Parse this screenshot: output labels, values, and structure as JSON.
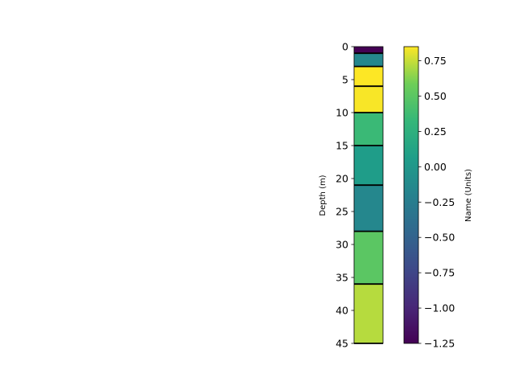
{
  "chart_data": {
    "type": "bar",
    "orientation": "vertical-column",
    "ylabel": "Depth (m)",
    "ylim": [
      45,
      0
    ],
    "yticks": [
      "0",
      "5",
      "10",
      "15",
      "20",
      "25",
      "30",
      "35",
      "40",
      "45"
    ],
    "layers": [
      {
        "top": 0,
        "bottom": 1,
        "value": -1.25
      },
      {
        "top": 1,
        "bottom": 3,
        "value": -0.15
      },
      {
        "top": 3,
        "bottom": 6,
        "value": 0.85
      },
      {
        "top": 6,
        "bottom": 10,
        "value": 0.84
      },
      {
        "top": 10,
        "bottom": 15,
        "value": 0.35
      },
      {
        "top": 15,
        "bottom": 21,
        "value": 0.05
      },
      {
        "top": 21,
        "bottom": 28,
        "value": -0.15
      },
      {
        "top": 28,
        "bottom": 36,
        "value": 0.5
      },
      {
        "top": 36,
        "bottom": 45,
        "value": 0.72
      }
    ],
    "colorbar": {
      "label": "Name (Units)",
      "colormap": "viridis",
      "vmin": -1.25,
      "vmax": 0.85,
      "ticks": [
        "0.75",
        "0.50",
        "0.25",
        "0.00",
        "−0.25",
        "−0.50",
        "−0.75",
        "−1.00",
        "−1.25"
      ],
      "tick_values": [
        0.75,
        0.5,
        0.25,
        0.0,
        -0.25,
        -0.5,
        -0.75,
        -1.0,
        -1.25
      ]
    }
  }
}
